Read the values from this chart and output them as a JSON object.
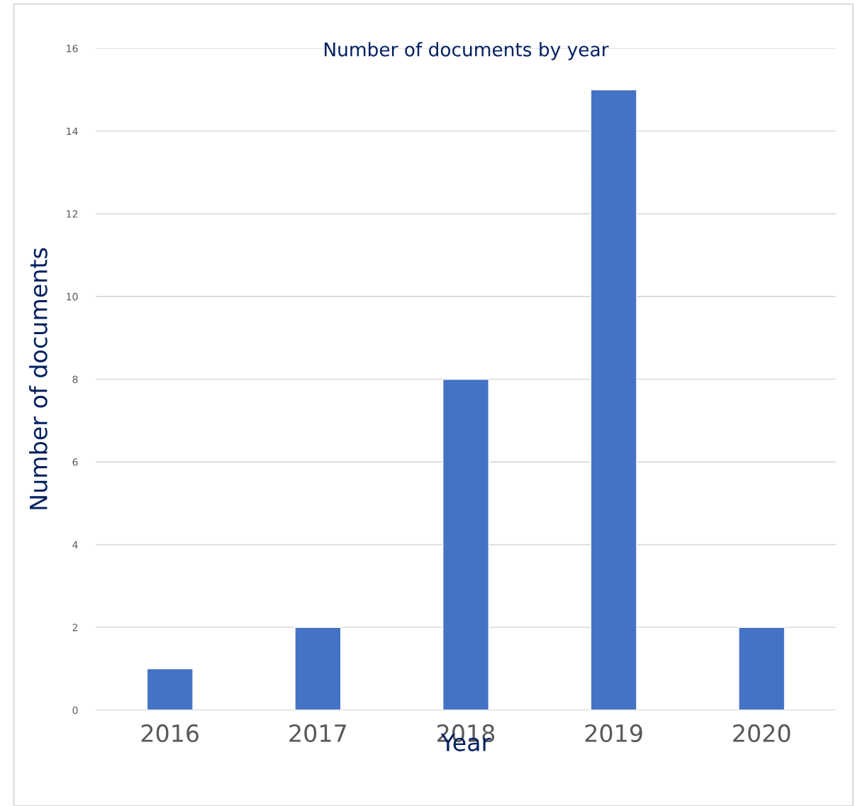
{
  "chart_data": {
    "type": "bar",
    "title": "Number of documents by year",
    "xlabel": "Year",
    "ylabel": "Number of documents",
    "categories": [
      "2016",
      "2017",
      "2018",
      "2019",
      "2020"
    ],
    "values": [
      1,
      2,
      8,
      15,
      2
    ],
    "color": "#4472c4",
    "ylim": [
      0,
      16
    ],
    "yticks": [
      0,
      2,
      4,
      6,
      8,
      10,
      12,
      14,
      16
    ],
    "grid": "y"
  }
}
